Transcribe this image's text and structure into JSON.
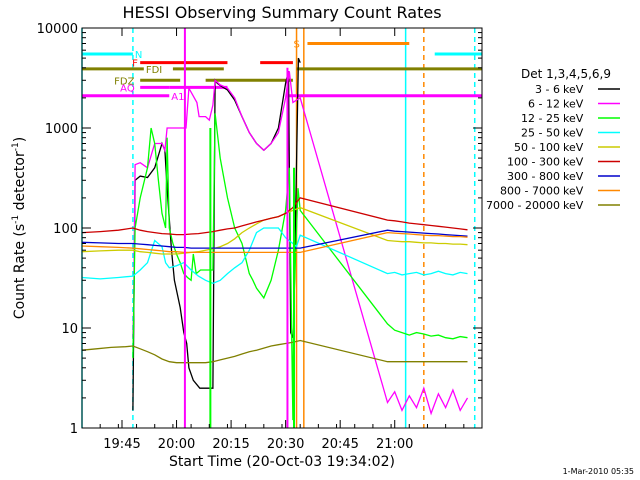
{
  "chart_data": {
    "type": "line",
    "title": "HESSI Observing Summary Count Rates",
    "xlabel": "Start Time (20-Oct-03 19:34:02)",
    "ylabel_main": "Count Rate (s",
    "ylabel_sup1": "-1",
    "ylabel_mid": " detector",
    "ylabel_sup2": "-1",
    "ylabel_end": ")",
    "timestamp": "1-Mar-2010 05:35",
    "xrange_min": [
      0,
      110
    ],
    "ylim": [
      1,
      10000
    ],
    "yscale": "log",
    "x_ticks": [
      {
        "min": 11,
        "label": "19:45"
      },
      {
        "min": 26,
        "label": "20:00"
      },
      {
        "min": 41,
        "label": "20:15"
      },
      {
        "min": 56,
        "label": "20:30"
      },
      {
        "min": 71,
        "label": "20:45"
      },
      {
        "min": 86,
        "label": "21:00"
      }
    ],
    "y_ticks": [
      {
        "v": 1,
        "label": "1"
      },
      {
        "v": 10,
        "label": "10"
      },
      {
        "v": 100,
        "label": "100"
      },
      {
        "v": 1000,
        "label": "1000"
      },
      {
        "v": 10000,
        "label": "10000"
      }
    ],
    "legend_title": "Det 1,3,4,5,6,9",
    "series": [
      {
        "name": "3 - 6 keV",
        "color": "#000000",
        "x": [
          14,
          14.6,
          16,
          18,
          20,
          22,
          22.8,
          23.4,
          24.6,
          25.4,
          27,
          28,
          28.8,
          29.4,
          30.6,
          32.4,
          34,
          35.6,
          36,
          36.6,
          37.2,
          38.4,
          40,
          42,
          44,
          46,
          48,
          50,
          52,
          54,
          56,
          56.8,
          57.4,
          58,
          58.2,
          59.5,
          60
        ],
        "y": [
          1.5,
          300,
          330,
          320,
          400,
          700,
          600,
          250,
          60,
          30,
          16,
          9,
          7,
          4,
          3,
          2.5,
          2.5,
          2.5,
          2.5,
          3000,
          2800,
          2600,
          2400,
          1900,
          1300,
          900,
          700,
          600,
          700,
          1000,
          2800,
          3700,
          9,
          8,
          10,
          5000,
          4500
        ]
      },
      {
        "name": "6 - 12 keV",
        "color": "#ff00ff",
        "x": [
          14,
          14.2,
          14.6,
          16,
          18,
          20,
          22,
          22.8,
          23.4,
          26,
          27.6,
          28.6,
          29.4,
          31.6,
          32.2,
          33,
          34,
          35,
          36,
          36.6,
          38,
          40,
          42,
          44,
          46,
          48,
          50,
          52,
          54,
          56,
          57,
          58,
          59,
          60,
          84,
          86,
          88,
          90,
          92,
          94,
          96,
          98,
          100,
          102,
          104,
          106
        ],
        "y": [
          8,
          15,
          430,
          450,
          400,
          700,
          700,
          600,
          1000,
          1000,
          1000,
          1000,
          2500,
          1800,
          1300,
          1300,
          1300,
          1200,
          1700,
          3000,
          2700,
          2500,
          2000,
          1300,
          900,
          700,
          600,
          700,
          900,
          2000,
          3700,
          1800,
          1900,
          2000,
          1.8,
          2.3,
          1.5,
          2.1,
          1.6,
          2.5,
          1.4,
          2.2,
          1.6,
          2.4,
          1.5,
          2
        ]
      },
      {
        "name": "12 - 25 keV",
        "color": "#00ff00",
        "x": [
          14,
          14.6,
          16,
          18,
          19,
          20,
          21,
          22,
          23,
          23.4,
          24,
          25,
          26,
          27,
          28,
          29,
          30,
          30.6,
          31.4,
          32.6,
          34,
          36,
          36.6,
          38,
          40,
          42,
          44,
          45,
          46,
          47,
          48,
          50,
          52,
          54,
          56,
          57,
          58,
          58.2,
          59.4,
          60,
          84,
          86,
          88,
          90,
          92,
          94,
          96,
          98,
          100,
          102,
          104,
          106
        ],
        "y": [
          5,
          100,
          200,
          400,
          1000,
          700,
          300,
          140,
          100,
          800,
          100,
          70,
          55,
          45,
          35,
          32,
          30,
          55,
          35,
          38,
          38,
          38,
          1400,
          500,
          200,
          100,
          70,
          50,
          35,
          30,
          25,
          20,
          30,
          60,
          150,
          400,
          1.2,
          15,
          250,
          150,
          11,
          9.5,
          9,
          8.5,
          9,
          8.7,
          8.3,
          8.5,
          8,
          7.8,
          8.2,
          8
        ]
      },
      {
        "name": "25 - 50 keV",
        "color": "#00ffff",
        "x": [
          0,
          5,
          10,
          14,
          16,
          18,
          20,
          22,
          23,
          24,
          26,
          28,
          30,
          32,
          34,
          36,
          38,
          40,
          42,
          44,
          46,
          48,
          50,
          52,
          54,
          56,
          58,
          59,
          60,
          84,
          86,
          88,
          90,
          92,
          94,
          96,
          98,
          100,
          102,
          104,
          106
        ],
        "y": [
          32,
          31,
          32,
          33,
          38,
          45,
          75,
          65,
          45,
          40,
          42,
          45,
          38,
          33,
          30,
          28,
          30,
          35,
          40,
          45,
          60,
          90,
          100,
          100,
          100,
          80,
          70,
          65,
          85,
          35,
          36,
          34,
          35,
          36,
          34,
          35,
          37,
          35,
          34,
          36,
          35
        ]
      },
      {
        "name": "50 - 100 keV",
        "color": "#cccc00",
        "x": [
          0,
          5,
          10,
          14,
          16,
          18,
          20,
          22,
          24,
          26,
          28,
          30,
          32,
          34,
          36,
          38,
          40,
          42,
          44,
          46,
          48,
          50,
          52,
          54,
          56,
          58,
          59,
          60,
          84,
          86,
          88,
          90,
          92,
          94,
          96,
          98,
          100,
          102,
          104,
          106
        ],
        "y": [
          58,
          59,
          60,
          60,
          58,
          57,
          56,
          55,
          55,
          55,
          56,
          57,
          58,
          60,
          62,
          65,
          70,
          78,
          90,
          100,
          110,
          120,
          125,
          130,
          140,
          150,
          155,
          160,
          75,
          74,
          73,
          73,
          72,
          71,
          71,
          70,
          70,
          69,
          69,
          68
        ]
      },
      {
        "name": "100 - 300 keV",
        "color": "#cc0000",
        "x": [
          0,
          5,
          10,
          14,
          16,
          18,
          20,
          22,
          24,
          26,
          28,
          30,
          32,
          34,
          36,
          38,
          40,
          42,
          44,
          46,
          48,
          50,
          52,
          54,
          56,
          58,
          59,
          60,
          84,
          86,
          88,
          90,
          92,
          94,
          96,
          98,
          100,
          102,
          104,
          106
        ],
        "y": [
          90,
          92,
          95,
          100,
          95,
          92,
          90,
          88,
          87,
          86,
          86,
          87,
          88,
          90,
          92,
          95,
          98,
          100,
          105,
          110,
          115,
          120,
          125,
          130,
          140,
          160,
          180,
          200,
          120,
          118,
          115,
          112,
          110,
          108,
          106,
          104,
          102,
          100,
          98,
          96
        ]
      },
      {
        "name": "300 - 800 keV",
        "color": "#0000cc",
        "x": [
          0,
          5,
          10,
          14,
          16,
          18,
          20,
          22,
          24,
          26,
          28,
          30,
          32,
          34,
          36,
          38,
          40,
          42,
          44,
          46,
          48,
          50,
          52,
          54,
          56,
          58,
          59,
          60,
          84,
          86,
          88,
          90,
          92,
          94,
          96,
          98,
          100,
          102,
          104,
          106
        ],
        "y": [
          72,
          71,
          70,
          70,
          69,
          68,
          67,
          66,
          65,
          64,
          64,
          63,
          63,
          63,
          63,
          63,
          63,
          63,
          63,
          63,
          63,
          63,
          63,
          63,
          63,
          63,
          63,
          63,
          95,
          93,
          92,
          91,
          90,
          89,
          88,
          87,
          86,
          85,
          84,
          83
        ]
      },
      {
        "name": "800 - 7000 keV",
        "color": "#ff8800",
        "x": [
          0,
          5,
          10,
          14,
          16,
          18,
          20,
          22,
          24,
          26,
          28,
          30,
          32,
          34,
          36,
          38,
          40,
          42,
          44,
          46,
          48,
          50,
          52,
          54,
          56,
          58,
          59,
          60,
          84,
          86,
          88,
          90,
          92,
          94,
          96,
          98,
          100,
          102,
          104,
          106
        ],
        "y": [
          66,
          65,
          64,
          63,
          62,
          61,
          60,
          59,
          58,
          58,
          57,
          57,
          57,
          57,
          57,
          57,
          57,
          57,
          57,
          57,
          57,
          57,
          57,
          57,
          57,
          57,
          57,
          57,
          90,
          89,
          88,
          87,
          86,
          85,
          84,
          84,
          83,
          82,
          82,
          81
        ]
      },
      {
        "name": "7000 - 20000 keV",
        "color": "#808000",
        "x": [
          0,
          4,
          8,
          12,
          14,
          16,
          18,
          20,
          22,
          24,
          26,
          28,
          30,
          32,
          34,
          36,
          38,
          40,
          42,
          44,
          46,
          48,
          50,
          52,
          54,
          56,
          58,
          60,
          84,
          86,
          88,
          90,
          92,
          94,
          96,
          98,
          100,
          102,
          104,
          106
        ],
        "y": [
          6,
          6.2,
          6.4,
          6.5,
          6.6,
          6.2,
          5.8,
          5.4,
          4.9,
          4.6,
          4.5,
          4.5,
          4.5,
          4.5,
          4.5,
          4.6,
          4.8,
          5,
          5.2,
          5.5,
          5.8,
          6,
          6.3,
          6.6,
          6.8,
          7,
          7.2,
          7.5,
          4.6,
          4.6,
          4.6,
          4.6,
          4.6,
          4.6,
          4.6,
          4.6,
          4.6,
          4.6,
          4.6,
          4.6
        ]
      }
    ],
    "flag_bars": [
      {
        "label": "N",
        "color": "#00ffff",
        "y": 5500,
        "segments": [
          [
            0,
            14
          ],
          [
            97,
            110
          ]
        ]
      },
      {
        "label": "S",
        "color": "#ff8800",
        "y": 7000,
        "segments": [
          [
            62,
            90
          ]
        ]
      },
      {
        "label": "F",
        "color": "#ff0000",
        "y": 4500,
        "segments": [
          [
            16,
            40
          ],
          [
            49,
            58
          ]
        ]
      },
      {
        "label": "FDI",
        "color": "#808000",
        "y": 3900,
        "segments": [
          [
            0,
            17
          ],
          [
            25,
            39
          ],
          [
            59,
            110
          ]
        ]
      },
      {
        "label": "FDZ",
        "color": "#808000",
        "y": 3000,
        "segments": [
          [
            16,
            27
          ],
          [
            34,
            58
          ]
        ]
      },
      {
        "label": "AQ",
        "color": "#ff00ff",
        "y": 2550,
        "segments": [
          [
            16,
            24
          ],
          [
            24,
            40
          ]
        ]
      },
      {
        "label": "A1",
        "color": "#ff00ff",
        "y": 2100,
        "segments": [
          [
            0,
            24
          ],
          [
            57,
            110
          ]
        ]
      }
    ],
    "spikes": [
      {
        "x": 28.3,
        "y0": 1,
        "y1": 10000,
        "color": "#ff00ff"
      },
      {
        "x": 35.3,
        "y0": 1,
        "y1": 1000,
        "color": "#00ff00"
      },
      {
        "x": 56.5,
        "y0": 1,
        "y1": 4000,
        "color": "#ff00ff"
      },
      {
        "x": 58.3,
        "y0": 1,
        "y1": 400,
        "color": "#00ff00"
      }
    ],
    "vlines": [
      {
        "x": 0,
        "color": "#00ffff",
        "dash": false
      },
      {
        "x": 14,
        "color": "#00ffff",
        "dash": true
      },
      {
        "x": 59,
        "color": "#ff8800",
        "dash": false
      },
      {
        "x": 61,
        "color": "#ff8800",
        "dash": false
      },
      {
        "x": 89,
        "color": "#00ffff",
        "dash": false
      },
      {
        "x": 94,
        "color": "#ff8800",
        "dash": true
      },
      {
        "x": 108,
        "color": "#00ffff",
        "dash": true
      }
    ]
  }
}
